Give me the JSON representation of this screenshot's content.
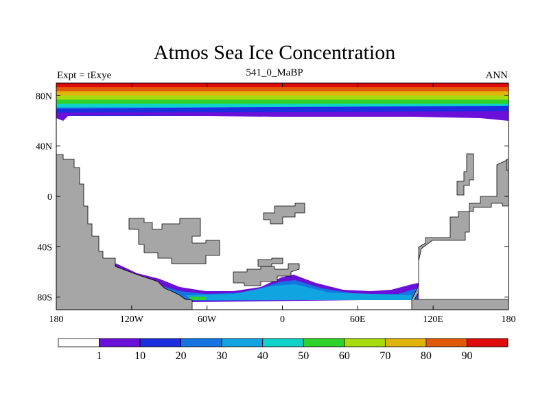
{
  "title": "Atmos Sea Ice Concentration",
  "subtitle_left": "Expt = tExye",
  "subtitle_center": "541_0_MaBP",
  "subtitle_right": "ANN",
  "map": {
    "lon_range": [
      -180,
      180
    ],
    "lat_range": [
      -90,
      90
    ],
    "x_ticks": [
      {
        "value": -180,
        "label": "180"
      },
      {
        "value": -120,
        "label": "120W"
      },
      {
        "value": -60,
        "label": "60W"
      },
      {
        "value": 0,
        "label": "0"
      },
      {
        "value": 60,
        "label": "60E"
      },
      {
        "value": 120,
        "label": "120E"
      },
      {
        "value": 180,
        "label": "180"
      }
    ],
    "y_ticks": [
      {
        "value": 80,
        "label": "80N"
      },
      {
        "value": 40,
        "label": "40N"
      },
      {
        "value": 0,
        "label": "0"
      },
      {
        "value": -40,
        "label": "40S"
      },
      {
        "value": -80,
        "label": "80S"
      }
    ],
    "land_color": "#a6a6a6"
  },
  "colorbar": {
    "labels": [
      "1",
      "10",
      "20",
      "30",
      "40",
      "50",
      "60",
      "70",
      "80",
      "90"
    ],
    "colors": [
      "#ffffff",
      "#6a10d8",
      "#1b2ee0",
      "#1574e0",
      "#10a5e0",
      "#0fd2c8",
      "#2ed22a",
      "#a8dc0e",
      "#e0b40a",
      "#e05a0a",
      "#e00a0a"
    ]
  }
}
